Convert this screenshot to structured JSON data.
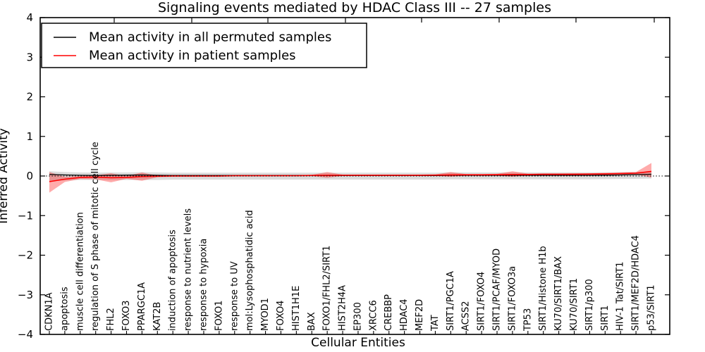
{
  "title": "Signaling events mediated by HDAC Class III -- 27 samples",
  "chart_data": {
    "type": "line",
    "title": "Signaling events mediated by HDAC Class III -- 27 samples",
    "xlabel": "Cellular Entities",
    "ylabel": "Inferred Activity",
    "ylim": [
      -4,
      4
    ],
    "yticks": [
      4,
      3,
      2,
      1,
      0,
      -1,
      -2,
      -3,
      -4
    ],
    "grid": false,
    "legend_position": "upper left",
    "categories": [
      "CDKN1A",
      "apoptosis",
      "muscle cell differentiation",
      "regulation of S phase of mitotic cell cycle",
      "FHL2",
      "FOXO3",
      "PPARGC1A",
      "KAT2B",
      "induction of apoptosis",
      "response to nutrient levels",
      "response to hypoxia",
      "FOXO1",
      "response to UV",
      "mol:Lysophosphatidic acid",
      "MYOD1",
      "FOXO4",
      "HIST1H1E",
      "BAX",
      "FOXO1/FHL2/SIRT1",
      "HIST2H4A",
      "EP300",
      "XRCC6",
      "CREBBP",
      "HDAC4",
      "MEF2D",
      "TAT",
      "SIRT1/PGC1A",
      "ACSS2",
      "SIRT1/FOXO4",
      "SIRT1/PCAF/MYOD",
      "SIRT1/FOXO3a",
      "TP53",
      "SIRT1/Histone H1b",
      "KU70/SIRT1/BAX",
      "KU70/SIRT1",
      "SIRT1/p300",
      "SIRT1",
      "HIV-1 Tat/SIRT1",
      "SIRT1/MEF2D/HDAC4",
      "p53/SIRT1"
    ],
    "series": [
      {
        "name": "Mean activity in all permuted samples",
        "color": "#000000",
        "values": [
          0.04,
          0.027,
          0.018,
          0.014,
          0.018,
          0.021,
          0.027,
          0.018,
          0.012,
          0.012,
          0.012,
          0.012,
          0.012,
          0.012,
          0.012,
          0.012,
          0.012,
          0.012,
          0.012,
          0.012,
          0.012,
          0.012,
          0.012,
          0.012,
          0.012,
          0.012,
          0.018,
          0.018,
          0.018,
          0.018,
          0.018,
          0.018,
          0.018,
          0.018,
          0.018,
          0.018,
          0.021,
          0.027,
          0.036,
          0.044
        ]
      },
      {
        "name": "Mean activity in patient samples",
        "color": "#ff0000",
        "values": [
          -0.142,
          -0.08,
          -0.036,
          -0.027,
          -0.044,
          -0.036,
          -0.014,
          -0.005,
          0,
          0,
          0,
          0,
          0.009,
          0.009,
          0.009,
          0.009,
          0.009,
          0.014,
          0.018,
          0.018,
          0.018,
          0.018,
          0.018,
          0.018,
          0.018,
          0.022,
          0.027,
          0.03,
          0.03,
          0.032,
          0.036,
          0.036,
          0.044,
          0.044,
          0.044,
          0.048,
          0.053,
          0.062,
          0.071,
          0.116
        ]
      }
    ],
    "bands": [
      {
        "name": "permuted-samples-range-band",
        "color": "#000000",
        "opacity": 0.14,
        "upper": [
          0.12,
          0.1,
          0.09,
          0.085,
          0.09,
          0.09,
          0.095,
          0.09,
          0.082,
          0.082,
          0.082,
          0.082,
          0.082,
          0.082,
          0.082,
          0.082,
          0.082,
          0.082,
          0.082,
          0.082,
          0.082,
          0.082,
          0.082,
          0.082,
          0.082,
          0.082,
          0.088,
          0.088,
          0.088,
          0.088,
          0.088,
          0.088,
          0.088,
          0.088,
          0.088,
          0.088,
          0.09,
          0.095,
          0.1,
          0.11
        ],
        "lower": [
          -0.13,
          -0.11,
          -0.1,
          -0.095,
          -0.1,
          -0.1,
          -0.1,
          -0.1,
          -0.09,
          -0.09,
          -0.09,
          -0.09,
          -0.09,
          -0.09,
          -0.09,
          -0.09,
          -0.09,
          -0.09,
          -0.09,
          -0.09,
          -0.09,
          -0.09,
          -0.09,
          -0.09,
          -0.09,
          -0.09,
          -0.085,
          -0.085,
          -0.085,
          -0.085,
          -0.085,
          -0.085,
          -0.085,
          -0.085,
          -0.085,
          -0.085,
          -0.08,
          -0.075,
          -0.07,
          -0.065
        ]
      },
      {
        "name": "patient-samples-range-band",
        "color": "#ff0000",
        "opacity": 0.33,
        "upper": [
          0.1,
          -0.02,
          0.0,
          0.02,
          0.07,
          0.0,
          0.09,
          0.01,
          0.02,
          0.02,
          0.02,
          0.02,
          0.025,
          0.025,
          0.025,
          0.025,
          0.025,
          0.03,
          0.1,
          0.035,
          0.035,
          0.035,
          0.035,
          0.035,
          0.035,
          0.04,
          0.1,
          0.05,
          0.05,
          0.055,
          0.12,
          0.06,
          0.065,
          0.065,
          0.07,
          0.07,
          0.08,
          0.09,
          0.1,
          0.33
        ],
        "lower": [
          -0.42,
          -0.15,
          -0.075,
          -0.085,
          -0.16,
          -0.07,
          -0.12,
          -0.03,
          -0.02,
          -0.02,
          -0.02,
          -0.02,
          -0.01,
          -0.01,
          -0.01,
          -0.01,
          -0.01,
          -0.005,
          -0.045,
          0.0,
          0.0,
          0.0,
          0.0,
          0.0,
          0.0,
          0.005,
          -0.02,
          0.01,
          0.01,
          0.012,
          -0.02,
          0.015,
          0.02,
          0.02,
          0.022,
          0.025,
          0.03,
          0.035,
          0.04,
          -0.04
        ]
      }
    ],
    "zero_line": {
      "style": "dotted",
      "color": "#000000",
      "y": 0
    }
  }
}
